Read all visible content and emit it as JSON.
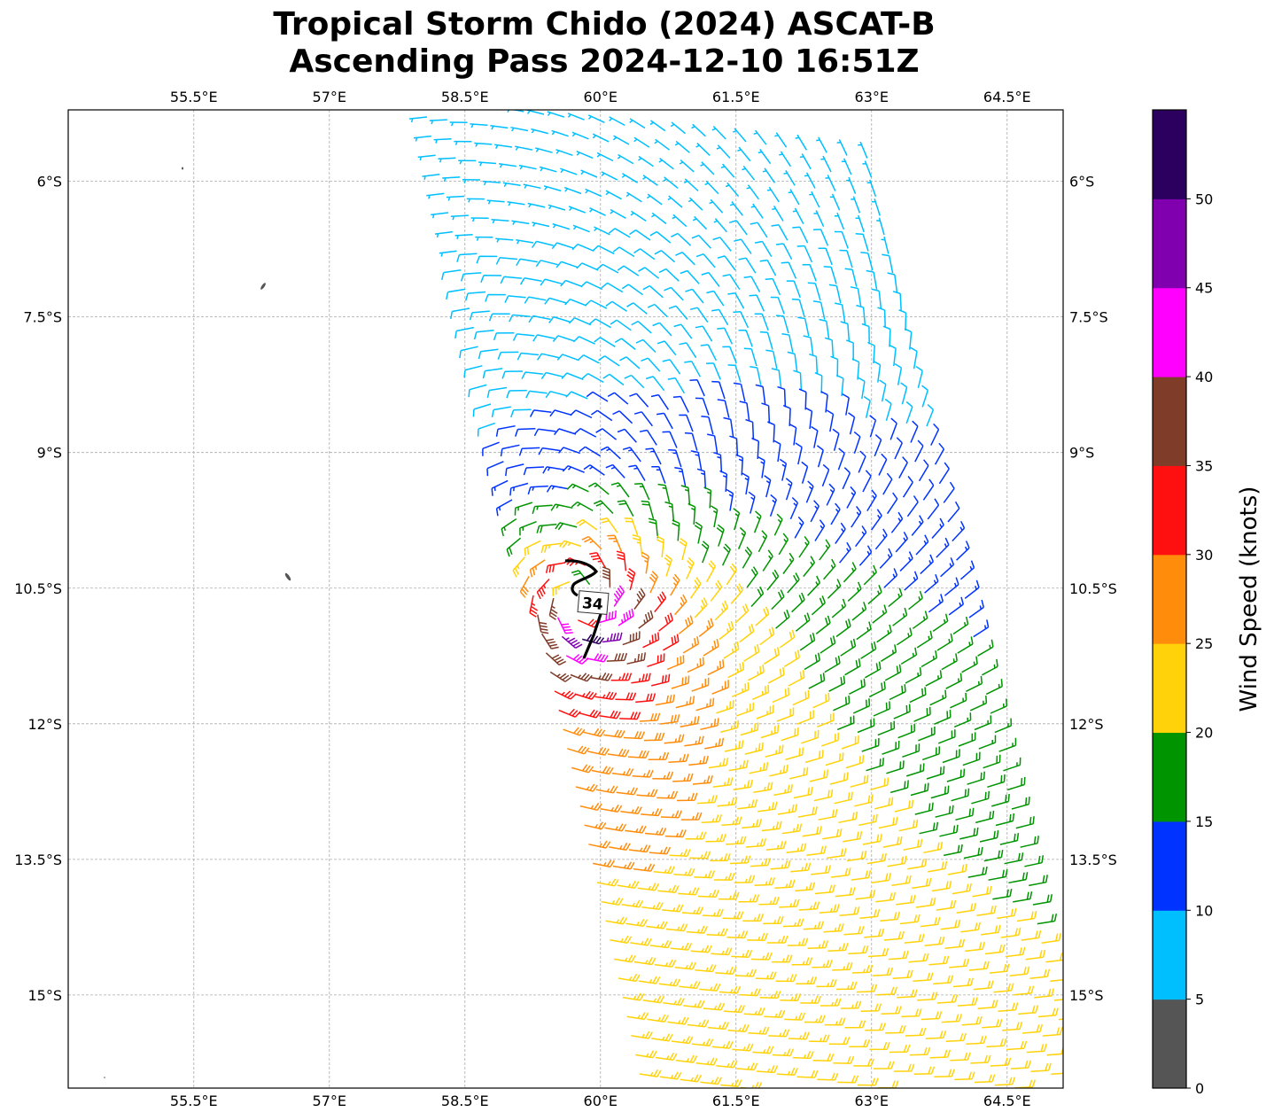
{
  "title": {
    "line1": "Tropical Storm Chido (2024) ASCAT-B",
    "line2": "Ascending Pass 2024-12-10 16:51Z"
  },
  "map": {
    "lon_range": [
      54.11,
      65.12
    ],
    "lat_range": [
      -16.03,
      -5.21
    ],
    "lon_ticks": [
      55.5,
      57,
      58.5,
      60,
      61.5,
      63,
      64.5
    ],
    "lon_tick_labels": [
      "55.5°E",
      "57°E",
      "58.5°E",
      "60°E",
      "61.5°E",
      "63°E",
      "64.5°E"
    ],
    "lat_ticks": [
      -6,
      -7.5,
      -9,
      -10.5,
      -12,
      -13.5,
      -15
    ],
    "lat_tick_labels": [
      "6°S",
      "7.5°S",
      "9°S",
      "10.5°S",
      "12°S",
      "13.5°S",
      "15°S"
    ],
    "gridlines": true,
    "contour_label": "34",
    "contour_color": "#000000",
    "land_color": "#555555"
  },
  "colorbar": {
    "label": "Wind Speed (knots)",
    "range": [
      0,
      55
    ],
    "ticks": [
      "0",
      "5",
      "10",
      "15",
      "20",
      "25",
      "30",
      "35",
      "40",
      "45",
      "50"
    ],
    "bins": [
      {
        "min": 0,
        "max": 5,
        "color": "#555555"
      },
      {
        "min": 5,
        "max": 10,
        "color": "#00bfff"
      },
      {
        "min": 10,
        "max": 15,
        "color": "#0033ff"
      },
      {
        "min": 15,
        "max": 20,
        "color": "#009400"
      },
      {
        "min": 20,
        "max": 25,
        "color": "#ffd20a"
      },
      {
        "min": 25,
        "max": 30,
        "color": "#ff8c0a"
      },
      {
        "min": 30,
        "max": 35,
        "color": "#ff1010"
      },
      {
        "min": 35,
        "max": 40,
        "color": "#7f3c28"
      },
      {
        "min": 40,
        "max": 45,
        "color": "#ff00ff"
      },
      {
        "min": 45,
        "max": 50,
        "color": "#8000b0"
      },
      {
        "min": 50,
        "max": 55,
        "color": "#2c005e"
      }
    ]
  },
  "chart_data": {
    "type": "wind-barb map",
    "title": "Tropical Storm Chido (2024) ASCAT-B Ascending Pass 2024-12-10 16:51Z",
    "units": "knots",
    "xlim": [
      54.11,
      65.12
    ],
    "ylim": [
      -16.03,
      -5.21
    ]
  }
}
